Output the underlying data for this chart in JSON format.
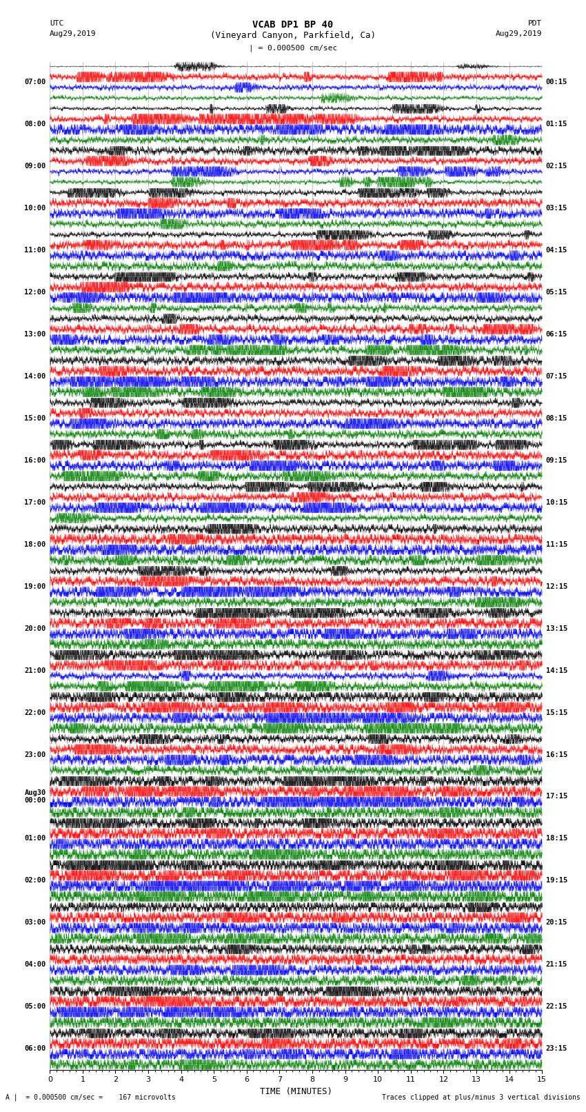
{
  "title_line1": "VCAB DP1 BP 40",
  "title_line2": "(Vineyard Canyon, Parkfield, Ca)",
  "scale_label": "| = 0.000500 cm/sec",
  "utc_label": "UTC",
  "utc_date": "Aug29,2019",
  "pdt_label": "PDT",
  "pdt_date": "Aug29,2019",
  "xlabel": "TIME (MINUTES)",
  "footer_left": "A |  = 0.000500 cm/sec =    167 microvolts",
  "footer_right": "Traces clipped at plus/minus 3 vertical divisions",
  "left_times": [
    "07:00",
    "08:00",
    "09:00",
    "10:00",
    "11:00",
    "12:00",
    "13:00",
    "14:00",
    "15:00",
    "16:00",
    "17:00",
    "18:00",
    "19:00",
    "20:00",
    "21:00",
    "22:00",
    "23:00",
    "Aug30\n00:00",
    "01:00",
    "02:00",
    "03:00",
    "04:00",
    "05:00",
    "06:00"
  ],
  "right_times": [
    "00:15",
    "01:15",
    "02:15",
    "03:15",
    "04:15",
    "05:15",
    "06:15",
    "07:15",
    "08:15",
    "09:15",
    "10:15",
    "11:15",
    "12:15",
    "13:15",
    "14:15",
    "15:15",
    "16:15",
    "17:15",
    "18:15",
    "19:15",
    "20:15",
    "21:15",
    "22:15",
    "23:15"
  ],
  "n_rows": 24,
  "traces_per_row": 4,
  "colors": [
    "black",
    "red",
    "blue",
    "green"
  ],
  "bg_color": "white",
  "xlim": [
    0,
    15
  ],
  "xticks": [
    0,
    1,
    2,
    3,
    4,
    5,
    6,
    7,
    8,
    9,
    10,
    11,
    12,
    13,
    14,
    15
  ],
  "noise_scales": [
    0.3,
    1.8,
    1.5,
    1.2,
    1.0,
    1.8,
    3.5,
    2.0,
    2.5,
    2.0,
    1.5,
    1.2,
    1.5,
    2.5,
    3.0,
    2.0,
    1.5,
    2.5,
    3.0,
    2.5,
    2.0,
    2.5,
    3.5,
    2.0,
    2.0,
    2.5,
    3.0,
    2.5,
    2.5,
    3.0,
    3.5,
    3.0,
    2.0,
    2.5,
    3.0,
    2.5,
    2.0,
    3.0,
    3.0,
    2.5,
    2.0,
    2.5,
    3.0,
    2.0,
    2.5,
    3.5,
    4.0,
    3.0,
    2.0,
    3.0,
    3.5,
    3.0,
    2.5,
    3.5,
    4.0,
    3.5,
    3.0,
    3.5,
    2.0,
    2.5,
    3.5,
    4.0,
    3.5,
    3.5,
    2.5,
    3.0,
    3.5,
    3.0,
    3.5,
    4.0,
    4.5,
    4.0,
    3.5,
    4.5,
    5.0,
    4.5,
    4.0,
    5.0,
    5.5,
    5.0,
    3.5,
    4.0,
    4.5,
    4.0,
    3.0,
    3.5,
    3.5,
    3.5,
    3.5,
    4.5,
    4.5,
    4.5,
    3.5,
    4.5,
    4.5,
    4.0
  ]
}
